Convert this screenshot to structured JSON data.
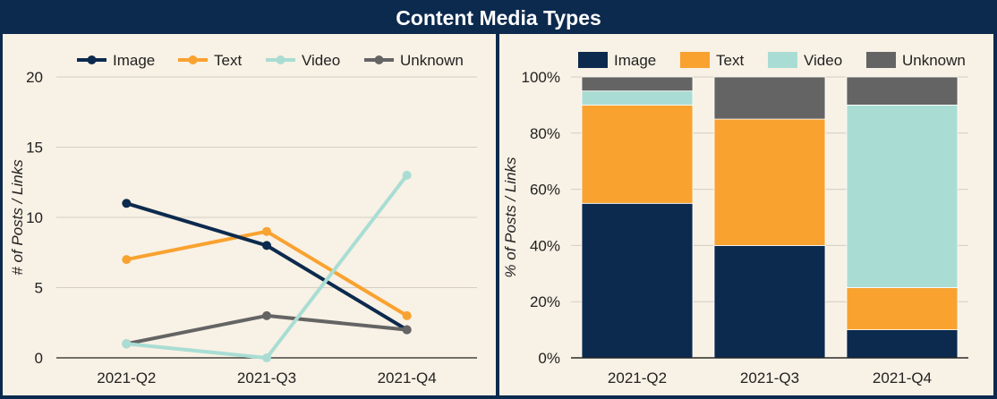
{
  "title": "Content Media Types",
  "colors": {
    "Image": "#0c2a4e",
    "Text": "#f9a230",
    "Video": "#a9ddd4",
    "Unknown": "#646464"
  },
  "chart_data": [
    {
      "type": "line",
      "title": "",
      "xlabel": "",
      "ylabel": "# of Posts / Links",
      "categories": [
        "2021-Q2",
        "2021-Q3",
        "2021-Q4"
      ],
      "ylim": [
        0,
        20
      ],
      "yticks": [
        "0",
        "5",
        "10",
        "15",
        "20"
      ],
      "grid": true,
      "legend_position": "top",
      "series": [
        {
          "name": "Image",
          "values": [
            11,
            8,
            2
          ]
        },
        {
          "name": "Text",
          "values": [
            7,
            9,
            3
          ]
        },
        {
          "name": "Video",
          "values": [
            1,
            0,
            13
          ]
        },
        {
          "name": "Unknown",
          "values": [
            1,
            3,
            2
          ]
        }
      ]
    },
    {
      "type": "bar",
      "stacked": true,
      "title": "",
      "xlabel": "",
      "ylabel": "% of Posts / Links",
      "categories": [
        "2021-Q2",
        "2021-Q3",
        "2021-Q4"
      ],
      "ylim": [
        0,
        100
      ],
      "yticks": [
        "0%",
        "20%",
        "40%",
        "60%",
        "80%",
        "100%"
      ],
      "grid": true,
      "legend_position": "top",
      "series": [
        {
          "name": "Image",
          "values": [
            55,
            40,
            10
          ]
        },
        {
          "name": "Text",
          "values": [
            35,
            45,
            15
          ]
        },
        {
          "name": "Video",
          "values": [
            5,
            0,
            65
          ]
        },
        {
          "name": "Unknown",
          "values": [
            5,
            15,
            10
          ]
        }
      ]
    }
  ]
}
